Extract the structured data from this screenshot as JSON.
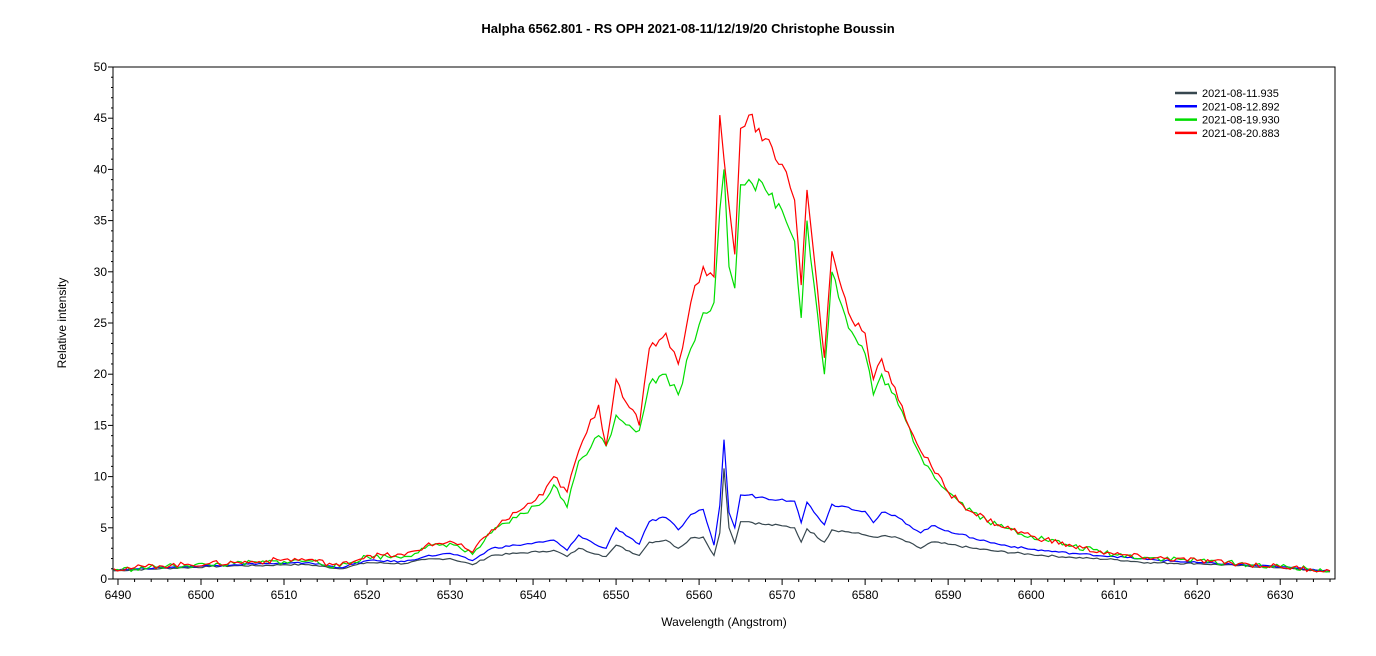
{
  "chart_data": {
    "type": "line",
    "title": "Halpha 6562.801 - RS OPH   2021-08-11/12/19/20   Christophe Boussin",
    "xlabel": "Wavelength (Angstrom)",
    "ylabel": "Relative intensity",
    "xlim": [
      6489.4,
      6636.6
    ],
    "ylim": [
      0,
      50
    ],
    "xticks": [
      6490,
      6500,
      6510,
      6520,
      6530,
      6540,
      6550,
      6560,
      6570,
      6580,
      6590,
      6600,
      6610,
      6620,
      6630
    ],
    "yticks": [
      0,
      5,
      10,
      15,
      20,
      25,
      30,
      35,
      40,
      45,
      50
    ],
    "grid": false,
    "legend_position": "top-right",
    "x": [
      6489.5,
      6492,
      6495,
      6498,
      6501,
      6504,
      6507,
      6510,
      6513,
      6516.7,
      6520,
      6524.5,
      6527,
      6530,
      6532.7,
      6535,
      6538,
      6541.2,
      6542.5,
      6544.1,
      6545.5,
      6547.9,
      6548.8,
      6550,
      6552.8,
      6554,
      6556,
      6557.5,
      6559,
      6560.5,
      6561.8,
      6562.5,
      6563,
      6563.6,
      6564.3,
      6565,
      6566,
      6568,
      6570,
      6571.5,
      6572.3,
      6573,
      6575.1,
      6576,
      6578,
      6580,
      6581,
      6582,
      6584,
      6586.7,
      6588,
      6590,
      6593,
      6596,
      6600,
      6605,
      6610,
      6614,
      6620,
      6625,
      6630,
      6636
    ],
    "series": [
      {
        "name": "2021-08-11.935",
        "color": "#37474f",
        "values": [
          0.8,
          0.9,
          1.0,
          1.1,
          1.2,
          1.3,
          1.3,
          1.4,
          1.4,
          1.0,
          1.6,
          1.5,
          1.9,
          2.0,
          1.4,
          2.3,
          2.5,
          2.7,
          2.8,
          2.2,
          3.0,
          2.4,
          2.2,
          3.3,
          2.3,
          3.6,
          3.8,
          3.0,
          4.0,
          4.1,
          2.3,
          4.5,
          10.8,
          5.0,
          3.5,
          5.6,
          5.6,
          5.3,
          5.2,
          5.0,
          3.6,
          4.9,
          3.6,
          4.8,
          4.6,
          4.3,
          4.1,
          4.2,
          4.0,
          3.0,
          3.6,
          3.4,
          3.0,
          2.7,
          2.4,
          2.1,
          1.9,
          1.6,
          1.5,
          1.3,
          1.1,
          0.7
        ]
      },
      {
        "name": "2021-08-12.892",
        "color": "#0000ff",
        "values": [
          0.9,
          1.0,
          1.1,
          1.2,
          1.3,
          1.4,
          1.5,
          1.5,
          1.6,
          1.1,
          1.8,
          1.7,
          2.2,
          2.5,
          1.8,
          3.0,
          3.3,
          3.6,
          3.8,
          2.8,
          4.3,
          3.2,
          3.0,
          5.0,
          3.4,
          5.6,
          6.0,
          4.8,
          6.3,
          6.8,
          3.3,
          7.2,
          13.6,
          6.5,
          5.0,
          8.2,
          8.2,
          7.9,
          7.8,
          7.6,
          5.5,
          7.5,
          5.3,
          7.3,
          7.0,
          6.6,
          5.5,
          6.5,
          6.0,
          4.5,
          5.2,
          4.7,
          4.0,
          3.4,
          2.9,
          2.5,
          2.2,
          1.9,
          1.6,
          1.4,
          1.2,
          0.8
        ]
      },
      {
        "name": "2021-08-19.930",
        "color": "#00dd00",
        "values": [
          0.9,
          1.0,
          1.2,
          1.3,
          1.4,
          1.5,
          1.6,
          1.7,
          1.8,
          1.2,
          2.2,
          2.2,
          3.0,
          3.5,
          2.4,
          4.5,
          6.0,
          7.5,
          9.2,
          7.0,
          11.5,
          14.0,
          13.0,
          16.0,
          14.5,
          19.0,
          20.0,
          18.0,
          22.5,
          26.0,
          27.0,
          36.0,
          40.0,
          30.5,
          28.4,
          38.5,
          39.0,
          38.0,
          36.0,
          33.0,
          25.5,
          35.0,
          20.0,
          30.0,
          24.5,
          22.0,
          18.0,
          20.0,
          17.0,
          12.0,
          10.5,
          8.5,
          6.5,
          5.2,
          4.2,
          3.2,
          2.4,
          2.1,
          1.8,
          1.5,
          1.2,
          0.8
        ]
      },
      {
        "name": "2021-08-20.883",
        "color": "#ff0000",
        "values": [
          1.0,
          1.1,
          1.3,
          1.4,
          1.5,
          1.6,
          1.7,
          1.9,
          1.9,
          1.3,
          2.3,
          2.3,
          3.2,
          3.7,
          2.6,
          4.8,
          6.5,
          8.2,
          10.0,
          8.5,
          12.5,
          17.0,
          13.0,
          19.5,
          15.0,
          22.5,
          24.0,
          21.0,
          27.0,
          30.5,
          29.5,
          45.3,
          41.0,
          36.5,
          31.7,
          44.0,
          45.3,
          43.0,
          40.5,
          37.0,
          28.7,
          38.0,
          21.6,
          32.0,
          26.0,
          24.0,
          19.5,
          21.5,
          17.5,
          12.5,
          11.0,
          8.5,
          6.5,
          5.3,
          4.2,
          3.2,
          2.4,
          2.1,
          1.8,
          1.5,
          1.2,
          0.8
        ]
      }
    ]
  }
}
